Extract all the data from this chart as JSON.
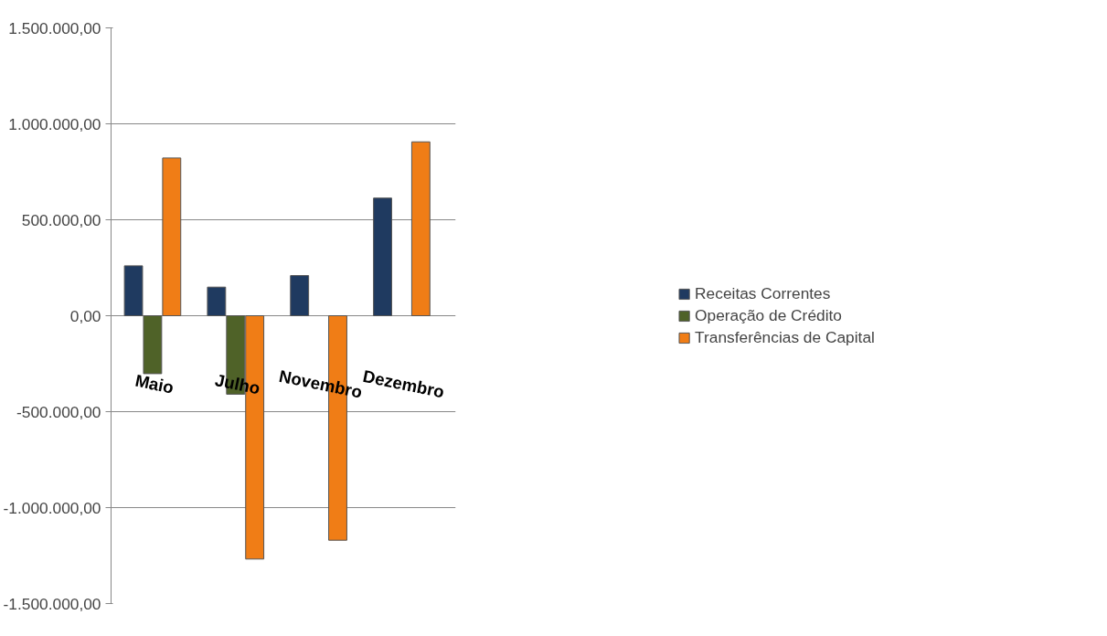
{
  "chart_data": {
    "type": "bar",
    "categories": [
      "Maio",
      "Julho",
      "Novembro",
      "Dezembro"
    ],
    "series": [
      {
        "name": "Receitas Correntes",
        "color": "#1f3a60",
        "values": [
          260000,
          149000,
          209000,
          613000
        ]
      },
      {
        "name": "Operação de Crédito",
        "color": "#4f6228",
        "values": [
          -302000,
          -409000,
          null,
          null
        ]
      },
      {
        "name": "Transferências de Capital",
        "color": "#f07d16",
        "values": [
          822000,
          -1268000,
          -1170000,
          906000
        ]
      }
    ],
    "ylim": [
      -1500000,
      1500000
    ],
    "yticks": [
      {
        "value": -1500000,
        "label": "-1.500.000,00"
      },
      {
        "value": -1000000,
        "label": "-1.000.000,00"
      },
      {
        "value": -500000,
        "label": "-500.000,00"
      },
      {
        "value": 0,
        "label": "0,00"
      },
      {
        "value": 500000,
        "label": "500.000,00"
      },
      {
        "value": 1000000,
        "label": "1.000.000,00"
      },
      {
        "value": 1500000,
        "label": "1.500.000,00"
      }
    ],
    "grid": "y",
    "legend": "right"
  }
}
